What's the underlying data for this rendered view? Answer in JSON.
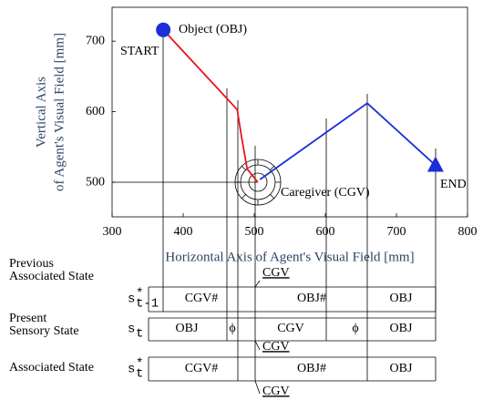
{
  "chart_data": {
    "type": "line",
    "xlabel": "Horizontal Axis of Agent's Visual Field [mm]",
    "ylabel": [
      "Vertical Axis",
      "of Agent's Visual Field [mm]"
    ],
    "xlim": [
      300,
      800
    ],
    "xticks": [
      300,
      400,
      500,
      600,
      700,
      800
    ],
    "ylim": [
      451,
      748
    ],
    "yticks": [
      500,
      600,
      700
    ],
    "series": [
      {
        "color": "#e8141e",
        "x": [
          372,
          476,
          482,
          490,
          505
        ],
        "values": [
          716,
          603,
          565,
          519,
          500
        ]
      },
      {
        "color": "#1c2fd8",
        "x": [
          508,
          659,
          755
        ],
        "values": [
          504,
          612,
          524
        ]
      }
    ],
    "annotations": {
      "object": "Object (OBJ)",
      "start": "START",
      "caregiver": "Caregiver (CGV)",
      "end": "END"
    }
  },
  "table": {
    "rows": [
      {
        "label": [
          "Previous",
          "Associated State"
        ],
        "symbol": {
          "base": "s",
          "sup": "*",
          "sub": "t-1"
        },
        "cells": [
          "CGV#",
          "OBJ#",
          "OBJ"
        ],
        "note": "CGV"
      },
      {
        "label": [
          "Present",
          "Sensory State"
        ],
        "symbol": {
          "base": "s",
          "sub": "t"
        },
        "cells": [
          "OBJ",
          "ϕ",
          "CGV",
          "ϕ",
          "OBJ"
        ],
        "note": "CGV"
      },
      {
        "label": [
          "Associated State"
        ],
        "symbol": {
          "base": "s",
          "sup": "*",
          "sub": "t"
        },
        "cells": [
          "CGV#",
          "OBJ#",
          "OBJ"
        ],
        "note": "CGV"
      }
    ]
  }
}
